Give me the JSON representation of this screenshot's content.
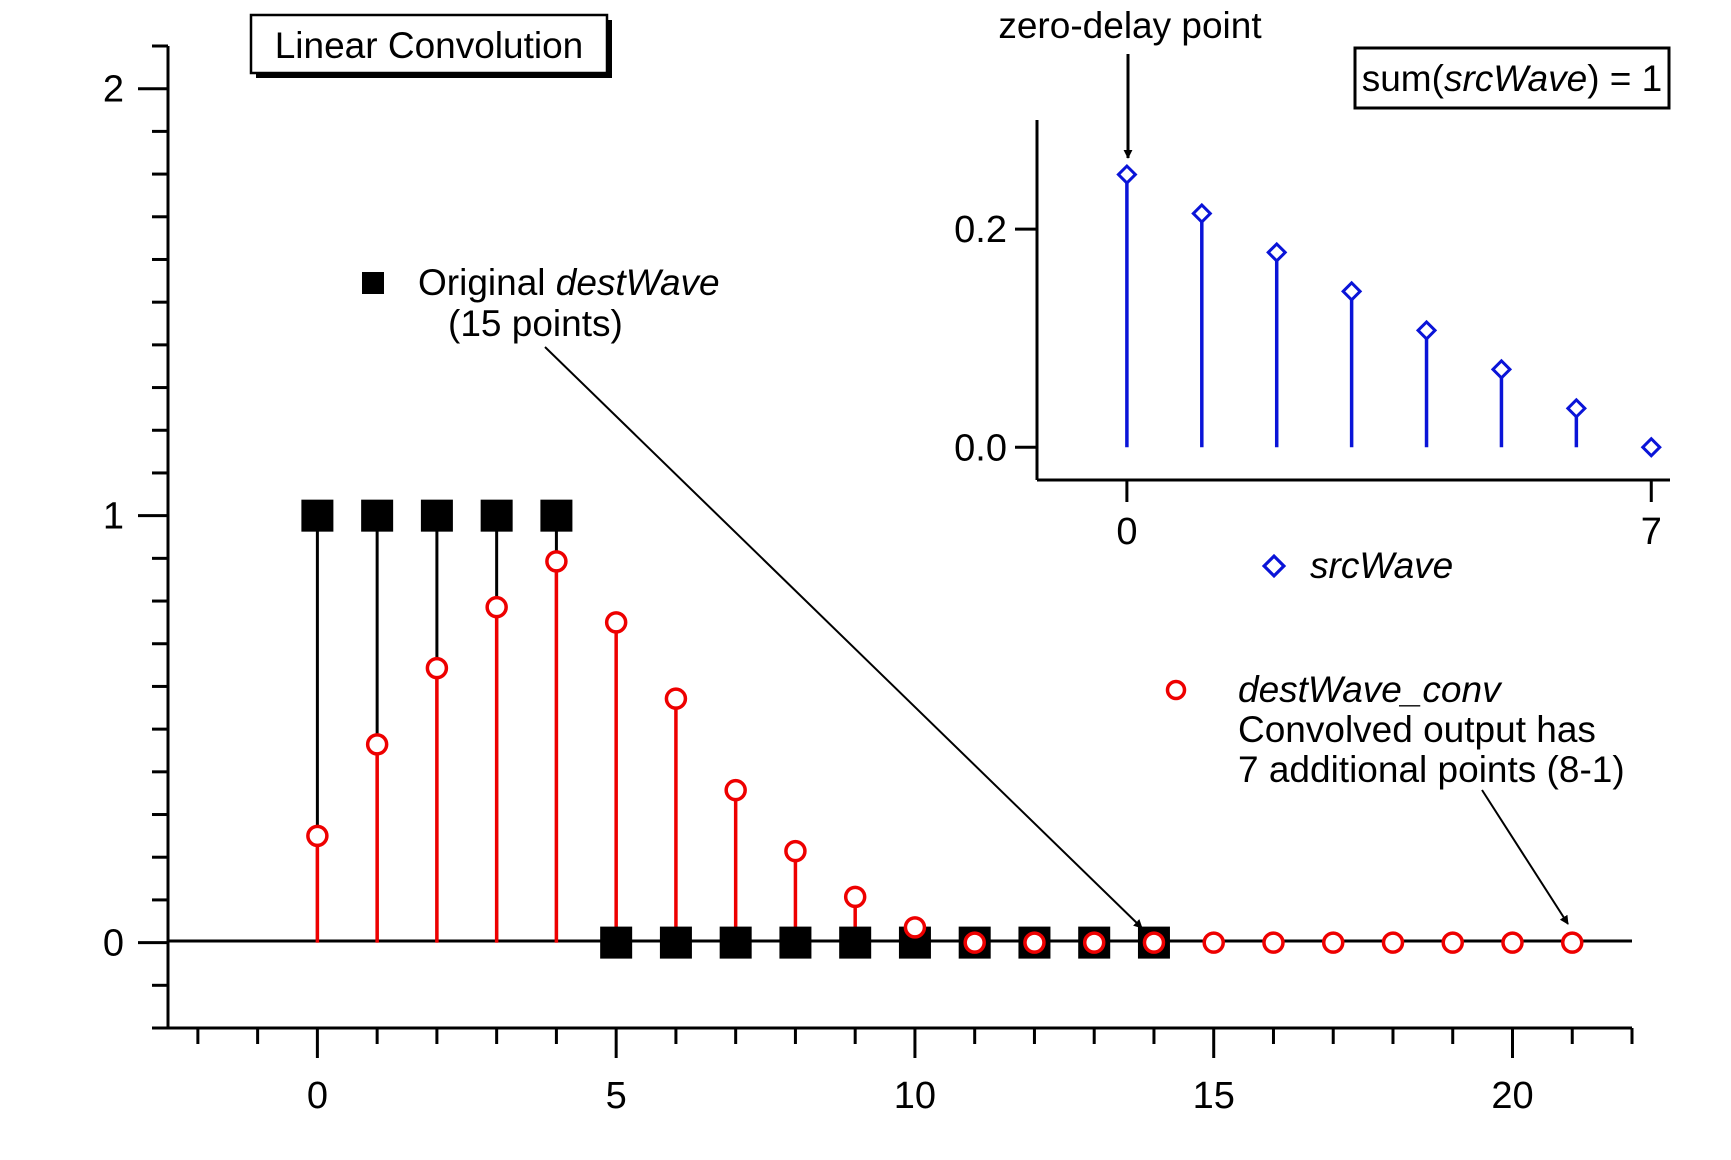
{
  "colors": {
    "dest": "#000000",
    "conv": "#ee0000",
    "src": "#0a14d8",
    "axis": "#000000"
  },
  "chart_data": [
    {
      "type": "stem",
      "title": "Linear Convolution",
      "xlim": [
        -2.5,
        22
      ],
      "ylim": [
        -0.2,
        2.1
      ],
      "x_ticks": [
        0,
        5,
        10,
        15,
        20
      ],
      "y_ticks": [
        0,
        1,
        2
      ],
      "x_minor_step": 1,
      "y_minor_step": 0.1,
      "series": [
        {
          "name": "destWave",
          "label_prefix": "Original ",
          "label_italic": "destWave",
          "label_line2": "(15 points)",
          "marker": "filled-square",
          "x": [
            0,
            1,
            2,
            3,
            4,
            5,
            6,
            7,
            8,
            9,
            10,
            11,
            12,
            13,
            14
          ],
          "values": [
            1,
            1,
            1,
            1,
            1,
            0,
            0,
            0,
            0,
            0,
            0,
            0,
            0,
            0,
            0
          ]
        },
        {
          "name": "destWave_conv",
          "label_italic": "destWave_conv",
          "label_line2": "Convolved output has",
          "label_line3": "7 additional points (8-1)",
          "marker": "open-circle",
          "x": [
            0,
            1,
            2,
            3,
            4,
            5,
            6,
            7,
            8,
            9,
            10,
            11,
            12,
            13,
            14,
            15,
            16,
            17,
            18,
            19,
            20,
            21
          ],
          "values": [
            0.25,
            0.4643,
            0.6429,
            0.7857,
            0.8929,
            0.75,
            0.5714,
            0.3571,
            0.2143,
            0.1071,
            0.0357,
            0,
            0,
            0,
            0,
            0,
            0,
            0,
            0,
            0,
            0,
            0
          ]
        }
      ]
    },
    {
      "type": "stem",
      "title": "",
      "xlim": [
        -1.2,
        7.25
      ],
      "ylim": [
        -0.03,
        0.3
      ],
      "x_ticks": [
        0,
        7
      ],
      "y_ticks": [
        0.0,
        0.2
      ],
      "y_tick_labels": [
        "0.0",
        "0.2"
      ],
      "series": [
        {
          "name": "srcWave",
          "label_italic": "srcWave",
          "marker": "open-diamond",
          "x": [
            0,
            1,
            2,
            3,
            4,
            5,
            6,
            7
          ],
          "values": [
            0.25,
            0.2143,
            0.1786,
            0.1429,
            0.1071,
            0.0714,
            0.0357,
            0
          ]
        }
      ],
      "annotations": {
        "zero_delay": "zero-delay point",
        "sum_prefix": "sum(",
        "sum_italic": "srcWave",
        "sum_suffix": ") = 1"
      }
    }
  ]
}
